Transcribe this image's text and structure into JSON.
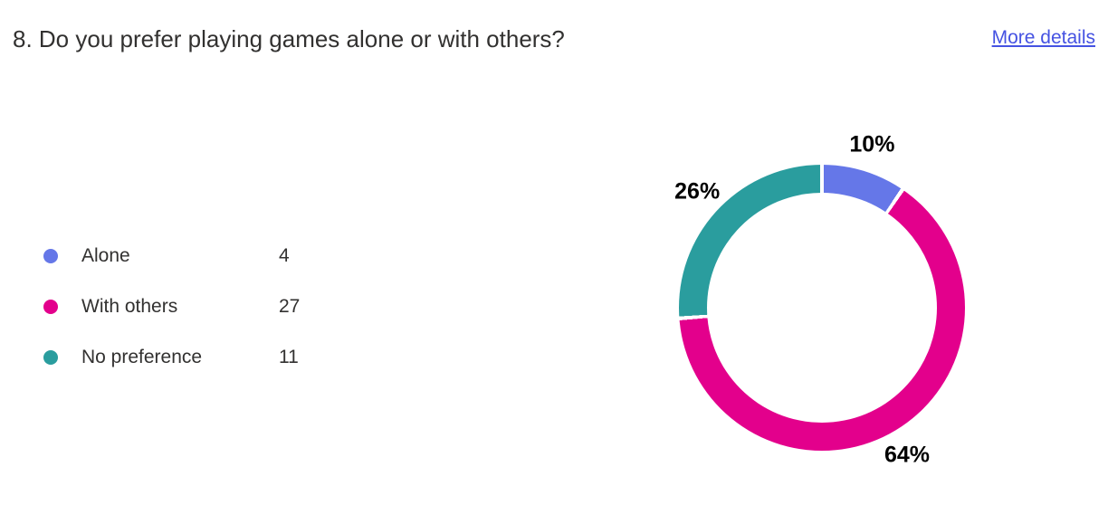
{
  "header": {
    "question": "8. Do you prefer playing games alone or with others?",
    "more_details_label": "More details"
  },
  "colors": {
    "link": "#4552E2",
    "title_text": "#323130",
    "percent_label_text": "#000000"
  },
  "chart_data": {
    "type": "pie",
    "style": "donut",
    "title": "8. Do you prefer playing games alone or with others?",
    "legend_position": "left",
    "clockwise": true,
    "start_angle_deg": 0,
    "gap_deg": 1.6,
    "total_responses": 42,
    "slices": [
      {
        "label": "Alone",
        "value": 4,
        "percent_label": "10%",
        "color": "#6577E8"
      },
      {
        "label": "With others",
        "value": 27,
        "percent_label": "64%",
        "color": "#E3008C"
      },
      {
        "label": "No preference",
        "value": 11,
        "percent_label": "26%",
        "color": "#2A9D9E"
      }
    ]
  }
}
